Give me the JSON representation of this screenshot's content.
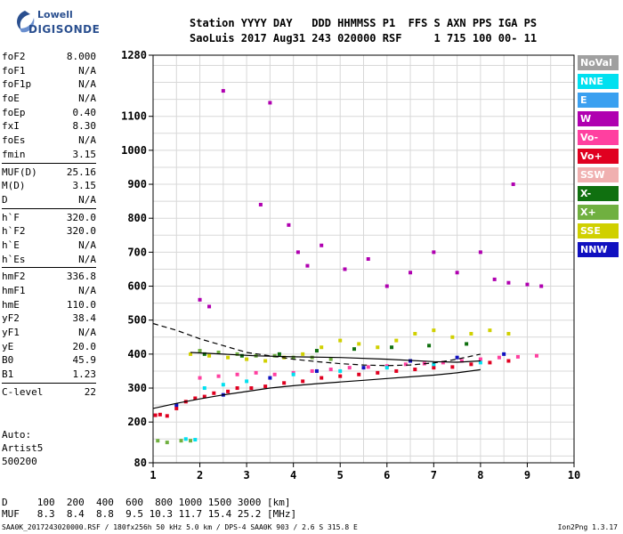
{
  "logo": {
    "brand": "Lowell",
    "product": "DIGISONDE"
  },
  "header": {
    "line1": "Station YYYY DAY   DDD HHMMSS P1  FFS S AXN PPS IGA PS",
    "line2": "SaoLuis 2017 Aug31 243 020000 RSF     1 715 100 00- 11"
  },
  "params": [
    [
      {
        "k": "foF2",
        "v": "8.000"
      },
      {
        "k": "foF1",
        "v": "N/A"
      },
      {
        "k": "foF1p",
        "v": "N/A"
      },
      {
        "k": "foE",
        "v": "N/A"
      },
      {
        "k": "foEp",
        "v": "0.40"
      },
      {
        "k": "fxI",
        "v": "8.30"
      },
      {
        "k": "foEs",
        "v": "N/A"
      },
      {
        "k": "fmin",
        "v": "3.15"
      }
    ],
    [
      {
        "k": "MUF(D)",
        "v": "25.16"
      },
      {
        "k": "M(D)",
        "v": "3.15"
      },
      {
        "k": "D",
        "v": "N/A"
      }
    ],
    [
      {
        "k": "h`F",
        "v": "320.0"
      },
      {
        "k": "h`F2",
        "v": "320.0"
      },
      {
        "k": "h`E",
        "v": "N/A"
      },
      {
        "k": "h`Es",
        "v": "N/A"
      }
    ],
    [
      {
        "k": "hmF2",
        "v": "336.8"
      },
      {
        "k": "hmF1",
        "v": "N/A"
      },
      {
        "k": "hmE",
        "v": "110.0"
      },
      {
        "k": "yF2",
        "v": "38.4"
      },
      {
        "k": "yF1",
        "v": "N/A"
      },
      {
        "k": "yE",
        "v": "20.0"
      },
      {
        "k": "B0",
        "v": "45.9"
      },
      {
        "k": "B1",
        "v": "1.23"
      }
    ],
    [
      {
        "k": "C-level",
        "v": "22"
      }
    ]
  ],
  "auto": {
    "line1": "Auto:",
    "line2": "Artist5",
    "line3": "500200"
  },
  "legend": [
    {
      "label": "NoVal",
      "color": "#a0a0a0"
    },
    {
      "label": "NNE",
      "color": "#00e0f0"
    },
    {
      "label": "E",
      "color": "#3aa0f0"
    },
    {
      "label": "W",
      "color": "#b000b0"
    },
    {
      "label": "Vo-",
      "color": "#ff40a0"
    },
    {
      "label": "Vo+",
      "color": "#e00020"
    },
    {
      "label": "SSW",
      "color": "#f0b0b0"
    },
    {
      "label": "X-",
      "color": "#107010"
    },
    {
      "label": "X+",
      "color": "#70b040"
    },
    {
      "label": "SSE",
      "color": "#d0d000"
    },
    {
      "label": "NNW",
      "color": "#1010c0"
    }
  ],
  "dtable": {
    "line1": "D     100  200  400  600  800 1000 1500 3000 [km]",
    "line2": "MUF   8.3  8.4  8.8  9.5 10.3 11.7 15.4 25.2 [MHz]"
  },
  "footer": {
    "left": "SAA0K_2017243020000.RSF / 180fx256h 50 kHz 5.0 km / DPS-4 SAA0K 903 / 2.6 S 315.8 E",
    "right": "Ion2Png 1.3.17"
  },
  "chart_data": {
    "type": "scatter",
    "title": "",
    "xlabel": "",
    "ylabel": "",
    "xlim": [
      1,
      10
    ],
    "ylim": [
      80,
      1280
    ],
    "xticks": [
      1,
      2,
      3,
      4,
      5,
      6,
      7,
      8,
      9,
      10
    ],
    "yticks": [
      80,
      200,
      300,
      400,
      500,
      600,
      700,
      800,
      900,
      1000,
      1100,
      1280
    ],
    "grid": true,
    "series": [
      {
        "name": "Vo+",
        "color": "#e00020",
        "points": [
          [
            1.05,
            220
          ],
          [
            1.15,
            222
          ],
          [
            1.3,
            218
          ],
          [
            1.5,
            240
          ],
          [
            1.7,
            260
          ],
          [
            1.9,
            270
          ],
          [
            2.1,
            275
          ],
          [
            2.3,
            285
          ],
          [
            2.6,
            290
          ],
          [
            2.8,
            300
          ],
          [
            3.1,
            300
          ],
          [
            3.4,
            305
          ],
          [
            3.8,
            315
          ],
          [
            4.2,
            320
          ],
          [
            4.6,
            330
          ],
          [
            5.0,
            335
          ],
          [
            5.4,
            340
          ],
          [
            5.8,
            345
          ],
          [
            6.2,
            350
          ],
          [
            6.6,
            355
          ],
          [
            7.0,
            360
          ],
          [
            7.4,
            362
          ],
          [
            7.8,
            370
          ],
          [
            8.2,
            375
          ],
          [
            8.6,
            380
          ]
        ]
      },
      {
        "name": "Vo-",
        "color": "#ff40a0",
        "points": [
          [
            2.0,
            330
          ],
          [
            2.4,
            335
          ],
          [
            2.8,
            340
          ],
          [
            3.2,
            345
          ],
          [
            3.6,
            340
          ],
          [
            4.0,
            345
          ],
          [
            4.4,
            350
          ],
          [
            4.8,
            355
          ],
          [
            5.2,
            360
          ],
          [
            5.6,
            362
          ],
          [
            6.0,
            365
          ],
          [
            6.4,
            370
          ],
          [
            6.8,
            372
          ],
          [
            7.2,
            375
          ],
          [
            7.6,
            380
          ],
          [
            8.0,
            385
          ],
          [
            8.4,
            390
          ],
          [
            8.8,
            392
          ],
          [
            9.2,
            395
          ]
        ]
      },
      {
        "name": "X+",
        "color": "#70b040",
        "points": [
          [
            1.1,
            145
          ],
          [
            1.3,
            140
          ],
          [
            1.6,
            145
          ],
          [
            1.8,
            145
          ],
          [
            2.0,
            410
          ],
          [
            2.4,
            405
          ],
          [
            2.8,
            400
          ],
          [
            3.2,
            395
          ],
          [
            3.6,
            395
          ],
          [
            4.0,
            390
          ],
          [
            4.4,
            390
          ],
          [
            4.8,
            385
          ]
        ]
      },
      {
        "name": "SSE",
        "color": "#d0d000",
        "points": [
          [
            1.8,
            400
          ],
          [
            2.2,
            395
          ],
          [
            2.6,
            390
          ],
          [
            3.0,
            385
          ],
          [
            3.4,
            380
          ],
          [
            3.8,
            390
          ],
          [
            4.2,
            400
          ],
          [
            4.6,
            420
          ],
          [
            5.0,
            440
          ],
          [
            5.4,
            430
          ],
          [
            5.8,
            420
          ],
          [
            6.2,
            440
          ],
          [
            6.6,
            460
          ],
          [
            7.0,
            470
          ],
          [
            7.4,
            450
          ],
          [
            7.8,
            460
          ],
          [
            8.2,
            470
          ],
          [
            8.6,
            460
          ]
        ]
      },
      {
        "name": "W",
        "color": "#b000b0",
        "points": [
          [
            2.5,
            1175
          ],
          [
            3.5,
            1140
          ],
          [
            2.0,
            560
          ],
          [
            2.2,
            540
          ],
          [
            3.3,
            840
          ],
          [
            3.9,
            780
          ],
          [
            4.1,
            700
          ],
          [
            4.3,
            660
          ],
          [
            4.6,
            720
          ],
          [
            5.1,
            650
          ],
          [
            5.6,
            680
          ],
          [
            6.0,
            600
          ],
          [
            6.5,
            640
          ],
          [
            7.0,
            700
          ],
          [
            7.5,
            640
          ],
          [
            8.0,
            700
          ],
          [
            8.3,
            620
          ],
          [
            8.6,
            610
          ],
          [
            9.0,
            605
          ],
          [
            9.3,
            600
          ],
          [
            8.7,
            900
          ]
        ]
      },
      {
        "name": "NNE",
        "color": "#00e0f0",
        "points": [
          [
            1.7,
            150
          ],
          [
            1.9,
            148
          ],
          [
            2.1,
            300
          ],
          [
            2.5,
            310
          ],
          [
            3.0,
            320
          ],
          [
            4.0,
            340
          ],
          [
            5.0,
            350
          ],
          [
            6.0,
            360
          ],
          [
            7.0,
            370
          ],
          [
            8.0,
            375
          ]
        ]
      },
      {
        "name": "NNW",
        "color": "#1010c0",
        "points": [
          [
            1.5,
            250
          ],
          [
            2.5,
            280
          ],
          [
            3.5,
            330
          ],
          [
            4.5,
            350
          ],
          [
            5.5,
            360
          ],
          [
            6.5,
            380
          ],
          [
            7.5,
            390
          ],
          [
            8.5,
            400
          ]
        ]
      },
      {
        "name": "X-",
        "color": "#107010",
        "points": [
          [
            2.1,
            400
          ],
          [
            2.9,
            395
          ],
          [
            3.7,
            400
          ],
          [
            4.5,
            410
          ],
          [
            5.3,
            415
          ],
          [
            6.1,
            420
          ],
          [
            6.9,
            425
          ],
          [
            7.7,
            430
          ]
        ]
      }
    ],
    "curves": [
      {
        "name": "trace",
        "style": "solid",
        "points": [
          [
            1.0,
            240
          ],
          [
            1.5,
            255
          ],
          [
            2.0,
            268
          ],
          [
            2.5,
            280
          ],
          [
            3.0,
            290
          ],
          [
            3.5,
            300
          ],
          [
            4.0,
            307
          ],
          [
            4.5,
            313
          ],
          [
            5.0,
            318
          ],
          [
            5.5,
            323
          ],
          [
            6.0,
            328
          ],
          [
            6.5,
            333
          ],
          [
            7.0,
            338
          ],
          [
            7.5,
            345
          ],
          [
            8.0,
            354
          ]
        ]
      },
      {
        "name": "profile",
        "style": "dashed",
        "points": [
          [
            1.0,
            490
          ],
          [
            1.5,
            470
          ],
          [
            2.0,
            445
          ],
          [
            2.5,
            425
          ],
          [
            3.0,
            405
          ],
          [
            3.5,
            395
          ],
          [
            4.0,
            385
          ],
          [
            4.5,
            378
          ],
          [
            5.0,
            372
          ],
          [
            5.5,
            368
          ],
          [
            6.0,
            366
          ],
          [
            6.5,
            368
          ],
          [
            7.0,
            374
          ],
          [
            7.5,
            385
          ],
          [
            8.0,
            400
          ]
        ]
      },
      {
        "name": "profile-trace",
        "style": "solid",
        "points": [
          [
            1.8,
            405
          ],
          [
            2.5,
            400
          ],
          [
            3.2,
            395
          ],
          [
            4.0,
            392
          ],
          [
            5.0,
            390
          ],
          [
            6.0,
            385
          ],
          [
            7.0,
            378
          ],
          [
            7.5,
            376
          ],
          [
            8.0,
            380
          ]
        ]
      }
    ]
  }
}
